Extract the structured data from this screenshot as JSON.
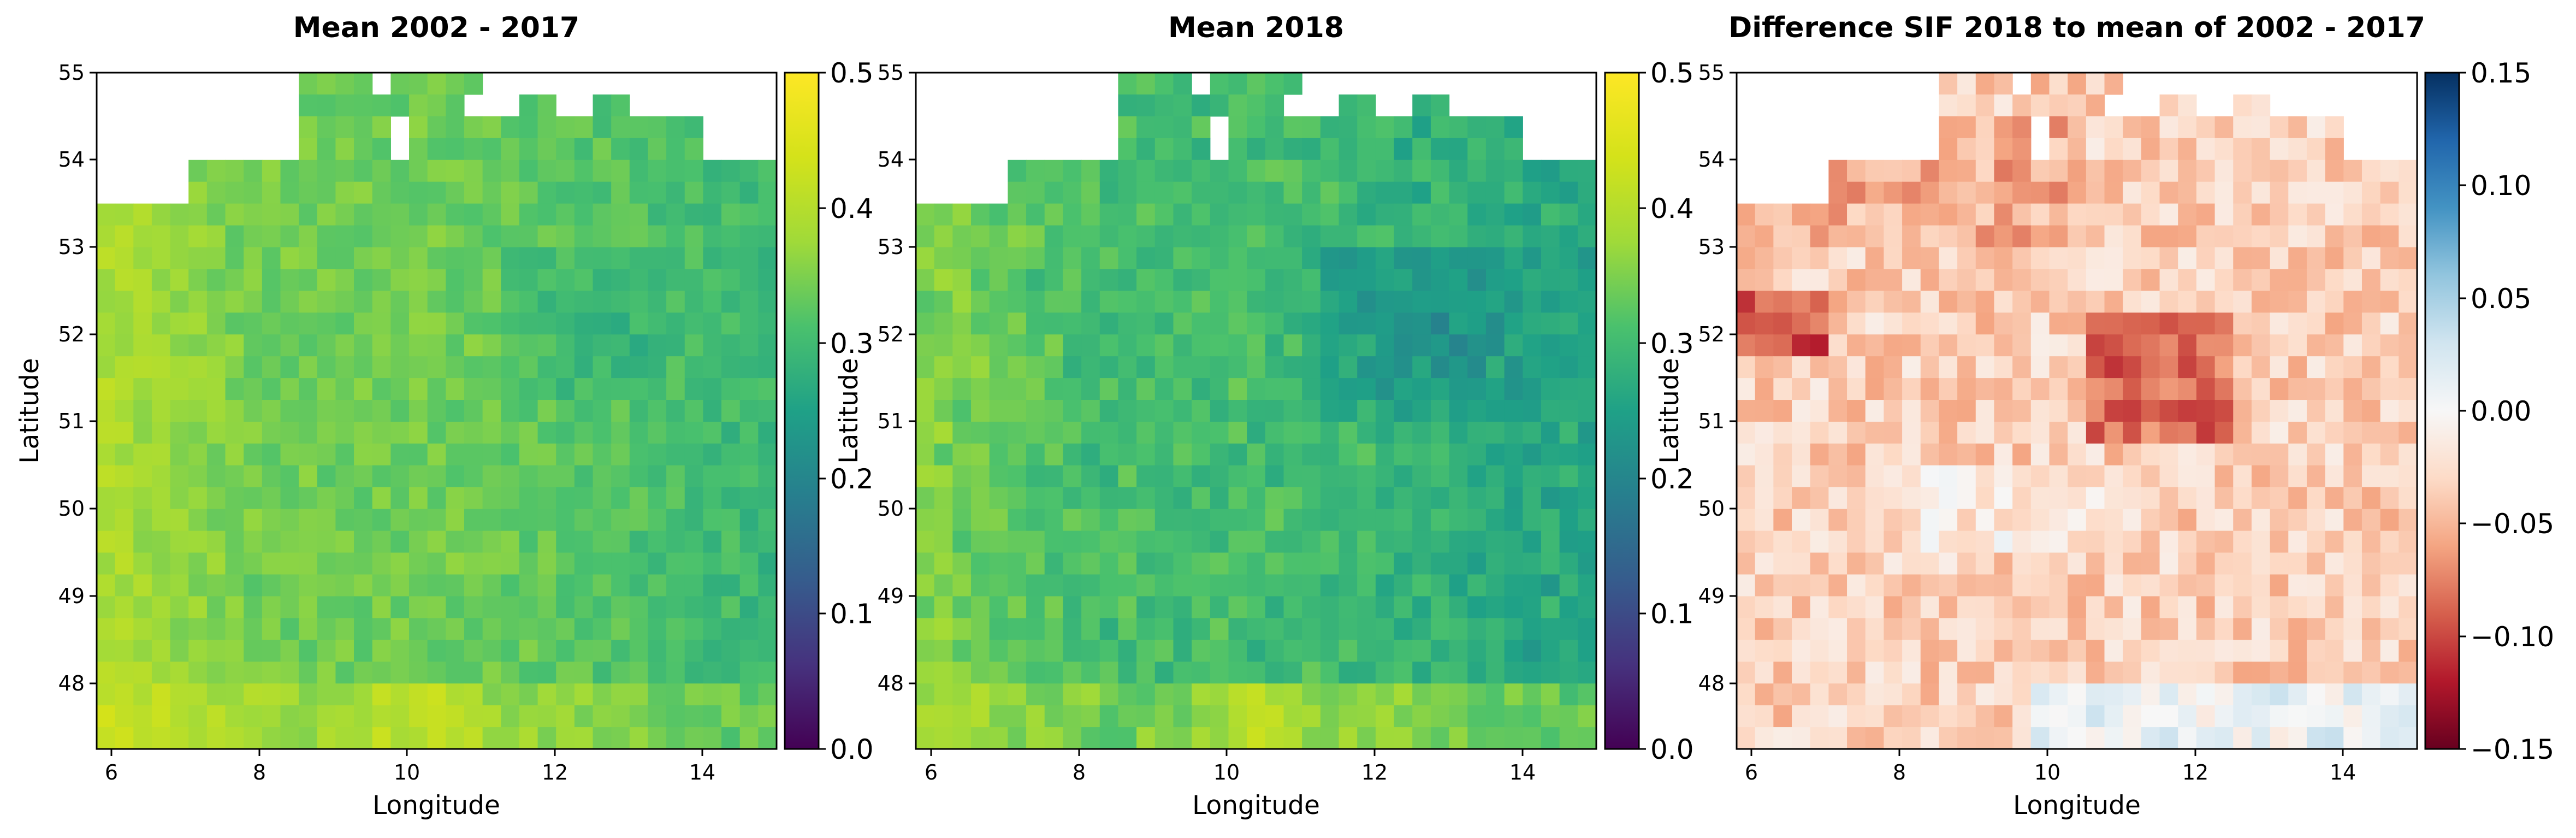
{
  "chart_data": [
    {
      "type": "heatmap",
      "title": "Mean 2002 - 2017",
      "xlabel": "Longitude",
      "ylabel": "Latitude",
      "xlim": [
        5.8,
        15.0
      ],
      "ylim": [
        47.27,
        55.0
      ],
      "xticks": [
        "6",
        "8",
        "10",
        "12",
        "14"
      ],
      "yticks": [
        "48",
        "49",
        "50",
        "51",
        "52",
        "53",
        "54",
        "55"
      ],
      "colormap": "viridis",
      "colorbar": {
        "min": 0.0,
        "max": 0.5,
        "ticks": [
          "0.0",
          "0.1",
          "0.2",
          "0.3",
          "0.4",
          "0.5"
        ]
      },
      "grid": {
        "columns": 37,
        "rows": 31,
        "cell_size_deg": 0.25,
        "values_approx_range": [
          0.25,
          0.44
        ],
        "masked_regions": "outside Germany (white)"
      }
    },
    {
      "type": "heatmap",
      "title": "Mean 2018",
      "xlabel": "Longitude",
      "ylabel": "Latitude",
      "xlim": [
        5.8,
        15.0
      ],
      "ylim": [
        47.27,
        55.0
      ],
      "xticks": [
        "6",
        "8",
        "10",
        "12",
        "14"
      ],
      "yticks": [
        "48",
        "49",
        "50",
        "51",
        "52",
        "53",
        "54",
        "55"
      ],
      "colormap": "viridis",
      "colorbar": {
        "min": 0.0,
        "max": 0.5,
        "ticks": [
          "0.0",
          "0.1",
          "0.2",
          "0.3",
          "0.4",
          "0.5"
        ]
      },
      "grid": {
        "columns": 37,
        "rows": 31,
        "cell_size_deg": 0.25,
        "values_approx_range": [
          0.21,
          0.43
        ],
        "masked_regions": "outside Germany (white)"
      }
    },
    {
      "type": "heatmap",
      "title": "Difference SIF 2018 to mean of 2002 - 2017",
      "xlabel": "Longitude",
      "ylabel": "Latitude",
      "xlim": [
        5.8,
        15.0
      ],
      "ylim": [
        47.27,
        55.0
      ],
      "xticks": [
        "6",
        "8",
        "10",
        "12",
        "14"
      ],
      "yticks": [
        "48",
        "49",
        "50",
        "51",
        "52",
        "53",
        "54",
        "55"
      ],
      "colormap": "RdBu",
      "colorbar": {
        "min": -0.15,
        "max": 0.15,
        "ticks": [
          "−0.15",
          "−0.10",
          "−0.05",
          "0.00",
          "0.05",
          "0.10",
          "0.15"
        ]
      },
      "grid": {
        "columns": 37,
        "rows": 31,
        "cell_size_deg": 0.25,
        "values_approx_range": [
          -0.14,
          0.03
        ],
        "masked_regions": "outside Germany (white)"
      }
    }
  ]
}
